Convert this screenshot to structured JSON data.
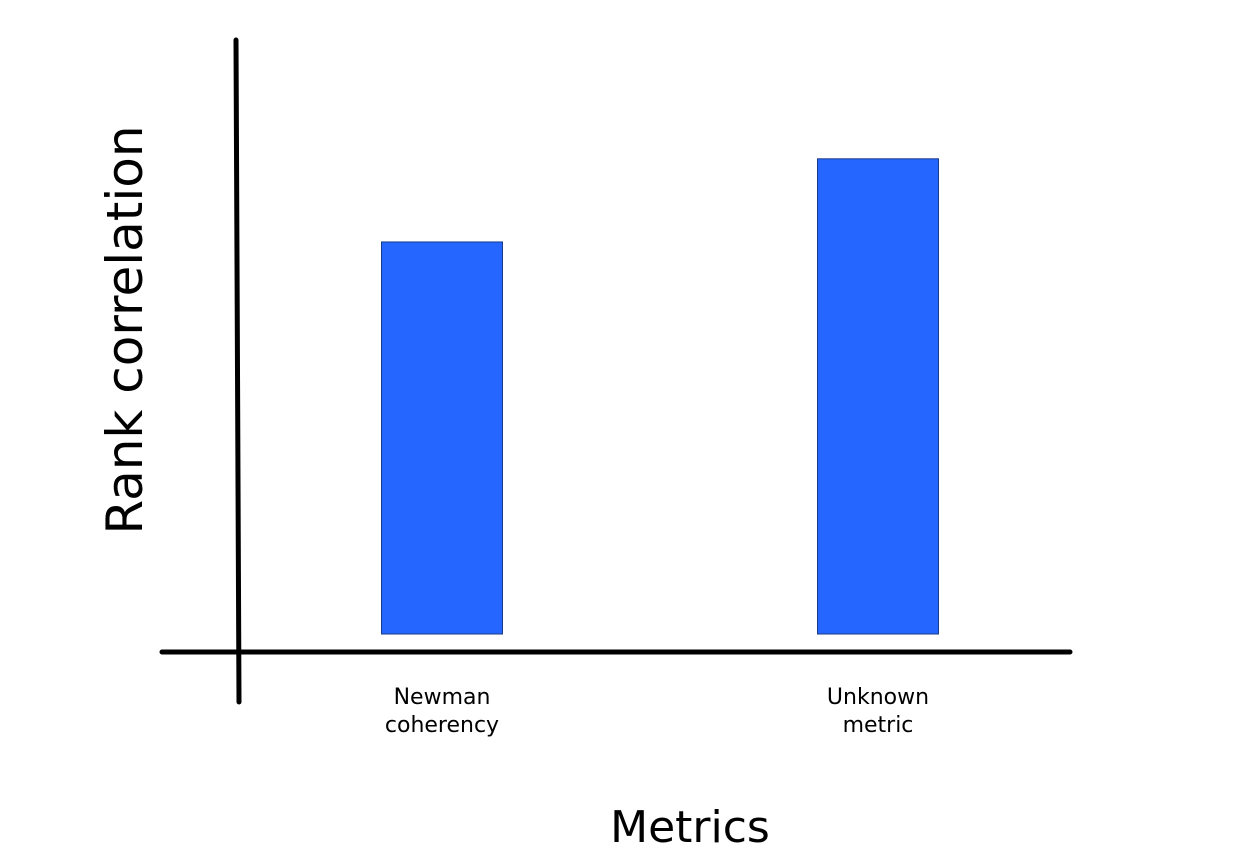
{
  "chart_data": {
    "type": "bar",
    "title": "",
    "xlabel": "Metrics",
    "ylabel": "Rank correlation",
    "categories": [
      "Newman coherency",
      "Unknown metric"
    ],
    "category_label_lines": [
      [
        "Newman",
        "coherency"
      ],
      [
        "Unknown",
        "metric"
      ]
    ],
    "values": [
      0.66,
      0.8
    ],
    "ylim": [
      0,
      1
    ],
    "grid": false,
    "y_ticks_shown": false,
    "bar_color": "#2466FF"
  }
}
